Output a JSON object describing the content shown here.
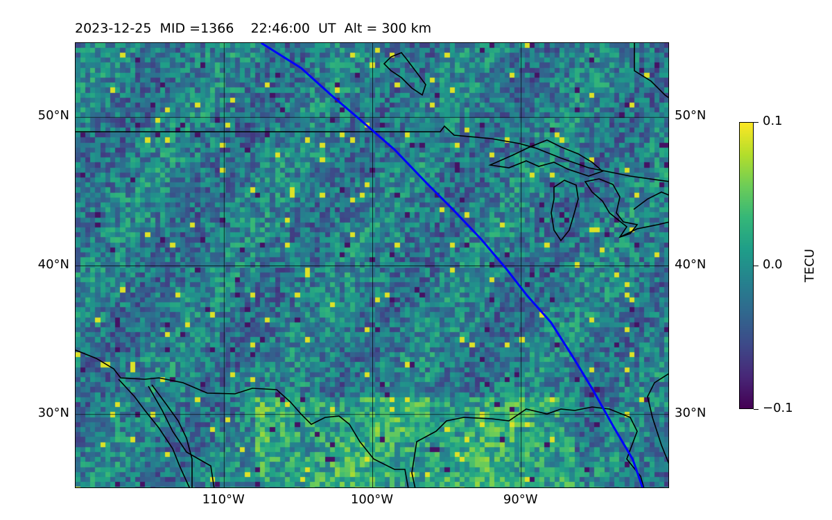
{
  "title": "2023-12-25  MID =1366    22:46:00  UT  Alt = 300 km",
  "map": {
    "extent": {
      "lon_min": -120,
      "lon_max": -80,
      "lat_min": 25,
      "lat_max": 55
    },
    "lat_ticks": [
      {
        "value": 30,
        "label": "30°N"
      },
      {
        "value": 40,
        "label": "40°N"
      },
      {
        "value": 50,
        "label": "50°N"
      }
    ],
    "lon_ticks": [
      {
        "value": -110,
        "label": "110°W"
      },
      {
        "value": -100,
        "label": "100°W"
      },
      {
        "value": -90,
        "label": "90°W"
      }
    ],
    "track_color": "#0000ff",
    "track_path": [
      [
        -107.5,
        55
      ],
      [
        -104.8,
        53.3
      ],
      [
        -102.8,
        51.5
      ],
      [
        -100.8,
        49.8
      ],
      [
        -98.5,
        47.8
      ],
      [
        -96.3,
        45.5
      ],
      [
        -94.6,
        43.8
      ],
      [
        -92.7,
        41.8
      ],
      [
        -91,
        39.8
      ],
      [
        -89.6,
        38
      ],
      [
        -88,
        36.2
      ],
      [
        -86.6,
        34
      ],
      [
        -85.2,
        31.7
      ],
      [
        -83.8,
        29.2
      ],
      [
        -82.5,
        27
      ],
      [
        -81.8,
        25
      ]
    ],
    "colormap": "viridis"
  },
  "colorbar": {
    "label": "TECU",
    "ticks": [
      {
        "value": 0.1,
        "label": "0.1"
      },
      {
        "value": 0.0,
        "label": "0.0"
      },
      {
        "value": -0.1,
        "label": "−0.1"
      }
    ],
    "vmin": -0.1,
    "vmax": 0.1
  }
}
